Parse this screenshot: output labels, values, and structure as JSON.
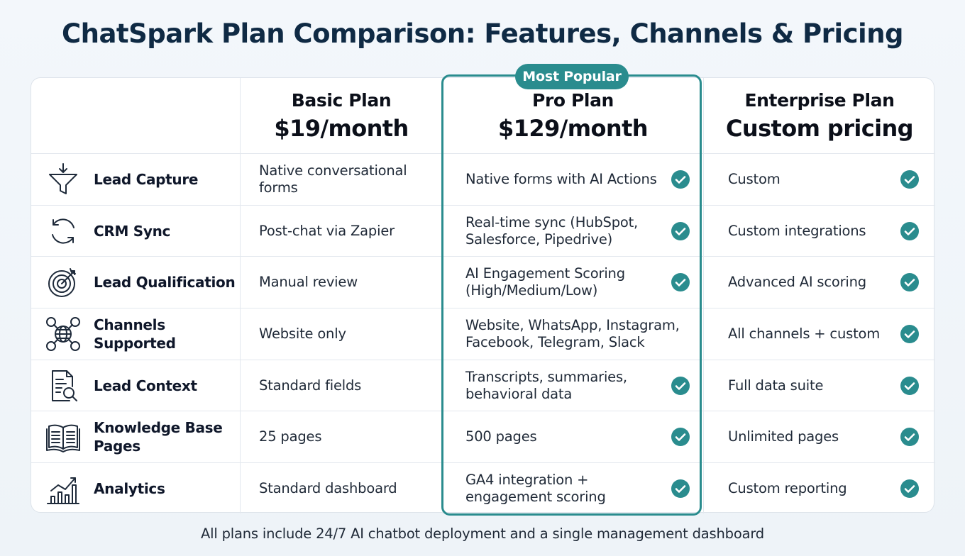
{
  "title": "ChatSpark Plan Comparison: Features, Channels & Pricing",
  "badge": "Most Popular",
  "plans": [
    {
      "name": "Basic Plan",
      "price": "$19/month"
    },
    {
      "name": "Pro Plan",
      "price": "$129/month"
    },
    {
      "name": "Enterprise Plan",
      "price": "Custom pricing"
    }
  ],
  "rows": [
    {
      "feature": "Lead Capture",
      "icon": "funnel-icon",
      "basic": "Native conversational forms",
      "pro": "Native forms with AI Actions",
      "enterprise": "Custom"
    },
    {
      "feature": "CRM Sync",
      "icon": "sync-icon",
      "basic": "Post-chat via Zapier",
      "pro": "Real-time sync (HubSpot, Salesforce, Pipedrive)",
      "enterprise": "Custom integrations"
    },
    {
      "feature": "Lead Qualification",
      "icon": "target-icon",
      "basic": "Manual review",
      "pro": "AI Engagement Scoring (High/Medium/Low)",
      "enterprise": "Advanced AI scoring"
    },
    {
      "feature": "Channels Supported",
      "icon": "globe-network-icon",
      "basic": "Website only",
      "pro": "Website, WhatsApp, Instagram, Facebook, Telegram, Slack",
      "enterprise": "All channels + custom"
    },
    {
      "feature": "Lead Context",
      "icon": "document-search-icon",
      "basic": "Standard fields",
      "pro": "Transcripts, summaries, behavioral data",
      "enterprise": "Full data suite"
    },
    {
      "feature": "Knowledge Base Pages",
      "icon": "open-book-icon",
      "basic": "25 pages",
      "pro": "500 pages",
      "enterprise": "Unlimited pages"
    },
    {
      "feature": "Analytics",
      "icon": "bar-chart-icon",
      "basic": "Standard dashboard",
      "pro": "GA4 integration + engagement scoring",
      "enterprise": "Custom reporting"
    }
  ],
  "footer": "All plans include 24/7 AI chatbot deployment and a single management dashboard",
  "colors": {
    "accent": "#2a8c8e",
    "title": "#0f2a44"
  }
}
